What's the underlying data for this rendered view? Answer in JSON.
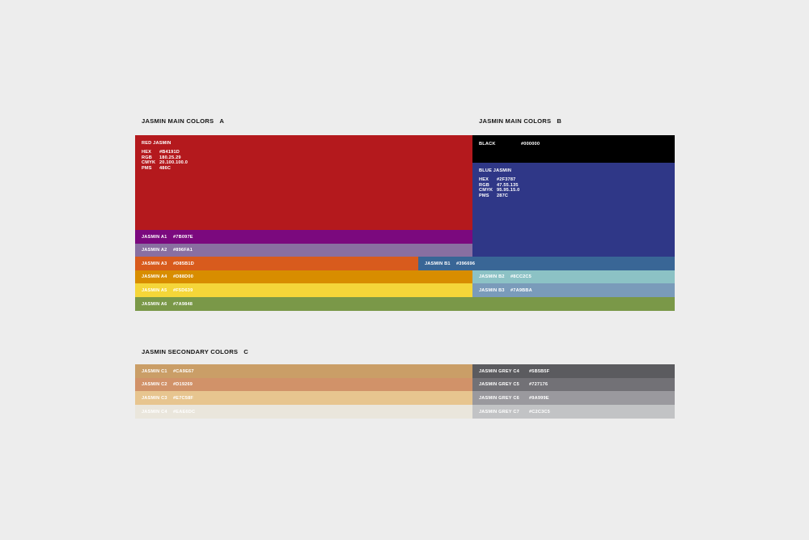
{
  "headings": {
    "main_a": {
      "title": "JASMIN MAIN COLORS",
      "letter": "A"
    },
    "main_b": {
      "title": "JASMIN MAIN COLORS",
      "letter": "B"
    },
    "secondary_c": {
      "title": "JASMIN SECONDARY COLORS",
      "letter": "C"
    }
  },
  "red_jasmin": {
    "name": "RED JASMIN",
    "color": "#B4191D",
    "specs": [
      {
        "key": "HEX",
        "value": "#B4191D"
      },
      {
        "key": "RGB",
        "value": "180.25.29"
      },
      {
        "key": "CMYK",
        "value": "20.100.100.0"
      },
      {
        "key": "PMS",
        "value": "486C"
      }
    ]
  },
  "black": {
    "name": "BLACK",
    "hex": "#000000",
    "color": "#000000"
  },
  "blue_jasmin": {
    "name": "BLUE JASMIN",
    "color": "#2F3787",
    "specs": [
      {
        "key": "HEX",
        "value": "#2F3787"
      },
      {
        "key": "RGB",
        "value": "47.55.135"
      },
      {
        "key": "CMYK",
        "value": "95.95.15.0"
      },
      {
        "key": "PMS",
        "value": "287C"
      }
    ]
  },
  "colors_a": [
    {
      "name": "JASMIN A1",
      "hex": "#7B097E",
      "color": "#7B097E"
    },
    {
      "name": "JASMIN A2",
      "hex": "#896FA1",
      "color": "#896FA1"
    },
    {
      "name": "JASMIN A3",
      "hex": "#D85B1D",
      "color": "#D85B1D"
    },
    {
      "name": "JASMIN A4",
      "hex": "#D88D00",
      "color": "#D88D00"
    },
    {
      "name": "JASMIN A5",
      "hex": "#F5D639",
      "color": "#F5D639"
    },
    {
      "name": "JASMIN A6",
      "hex": "#7A9848",
      "color": "#7A9848"
    }
  ],
  "colors_b": [
    {
      "name": "JASMIN B1",
      "hex": "#396696",
      "color": "#396696"
    },
    {
      "name": "JASMIN B2",
      "hex": "#8CC2C5",
      "color": "#8CC2C5"
    },
    {
      "name": "JASMIN B3",
      "hex": "#7A9BBA",
      "color": "#7A9BBA"
    }
  ],
  "colors_c": [
    {
      "name": "JASMIN C1",
      "hex": "#CA9E67",
      "color": "#CA9E67"
    },
    {
      "name": "JASMIN C2",
      "hex": "#D19269",
      "color": "#D19269"
    },
    {
      "name": "JASMIN C3",
      "hex": "#E7C58F",
      "color": "#E7C58F"
    },
    {
      "name": "JASMIN C4",
      "hex": "#EAE6DC",
      "color": "#EAE6DC"
    }
  ],
  "colors_grey": [
    {
      "name": "JASMIN GREY C4",
      "hex": "#5B5B5F",
      "color": "#5B5B5F"
    },
    {
      "name": "JASMIN GREY C5",
      "hex": "#727176",
      "color": "#727176"
    },
    {
      "name": "JASMIN GREY C6",
      "hex": "#9A999E",
      "color": "#9A999E"
    },
    {
      "name": "JASMIN GREY C7",
      "hex": "#C2C3C5",
      "color": "#C2C3C5"
    }
  ]
}
